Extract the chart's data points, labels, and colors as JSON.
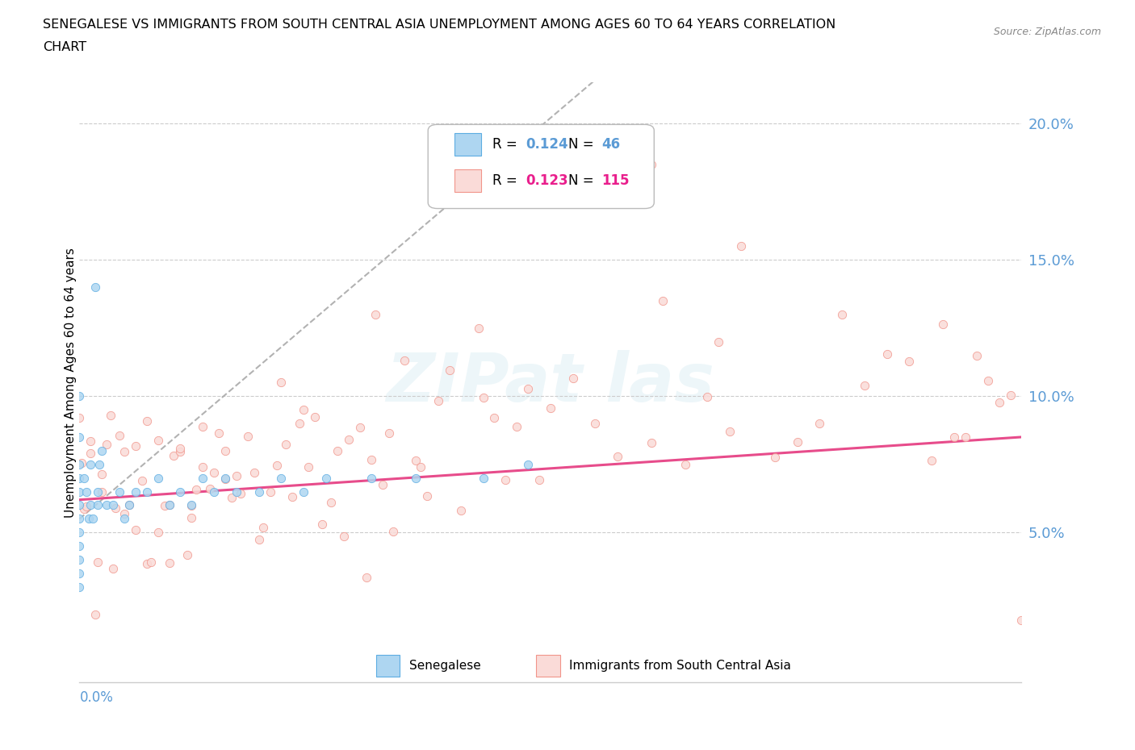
{
  "title_line1": "SENEGALESE VS IMMIGRANTS FROM SOUTH CENTRAL ASIA UNEMPLOYMENT AMONG AGES 60 TO 64 YEARS CORRELATION",
  "title_line2": "CHART",
  "source": "Source: ZipAtlas.com",
  "ylabel": "Unemployment Among Ages 60 to 64 years",
  "xlim": [
    0.0,
    0.42
  ],
  "ylim": [
    -0.005,
    0.215
  ],
  "legend_r1": "R = 0.124",
  "legend_n1": "N = 46",
  "legend_r2": "R = 0.123",
  "legend_n2": "N = 115",
  "color_senegalese_fill": "#AED6F1",
  "color_senegalese_edge": "#5DADE2",
  "color_immigrants_fill": "#FADBD8",
  "color_immigrants_edge": "#F1948A",
  "color_trend_senegalese": "#AAAAAA",
  "color_trend_immigrants": "#E74C8B",
  "color_axis_blue": "#5B9BD5",
  "color_axis_pink": "#E91E8C",
  "ytick_vals": [
    0.05,
    0.1,
    0.15,
    0.2
  ],
  "ytick_labels": [
    "5.0%",
    "10.0%",
    "15.0%",
    "20.0%"
  ]
}
